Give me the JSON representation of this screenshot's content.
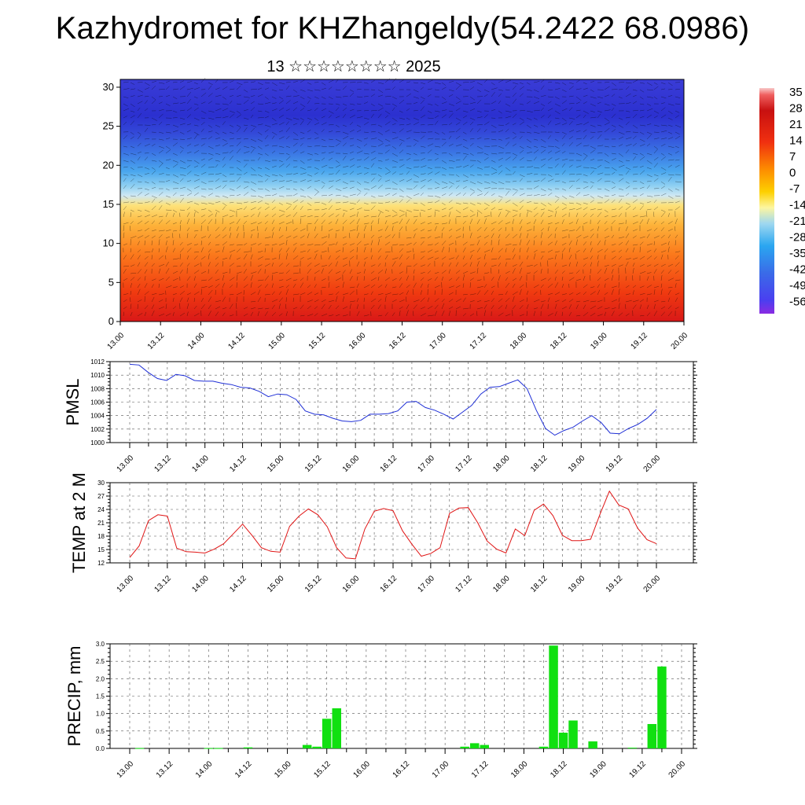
{
  "header": {
    "title": "Kazhydromet for KHZhangeldy(54.2422 68.0986)",
    "subtitle": "13 ☆☆☆☆☆☆☆☆ 2025"
  },
  "colors": {
    "pmsl_line": "#1f2fd6",
    "temp_line": "#e01414",
    "precip_bar": "#10e010",
    "frame": "#000000"
  },
  "chart_data": [
    {
      "type": "heatmap",
      "title": "",
      "xlabel": "",
      "ylabel": "",
      "x_tick_labels": [
        "13.00",
        "13.12",
        "14.00",
        "14.12",
        "15.00",
        "15.12",
        "16.00",
        "16.12",
        "17.00",
        "17.12",
        "18.00",
        "18.12",
        "19.00",
        "19.12",
        "20.00"
      ],
      "y_ticks": [
        0,
        5,
        10,
        15,
        20,
        25,
        30
      ],
      "ylim": [
        0,
        31
      ],
      "colorbar_labels": [
        "35",
        "28",
        "21",
        "14",
        "7",
        "0",
        "-7",
        "-14",
        "-21",
        "-28",
        "-35",
        "-42",
        "-49",
        "-56"
      ],
      "overlay": "wind vectors"
    },
    {
      "type": "line",
      "ylabel": "PMSL",
      "ylim": [
        1000,
        1012
      ],
      "y_ticks": [
        "1012",
        "1010",
        "1008",
        "1006",
        "1004",
        "1002",
        "1000"
      ],
      "x_tick_labels": [
        "13.00",
        "13.12",
        "14.00",
        "14.12",
        "15.00",
        "15.12",
        "16.00",
        "16.12",
        "17.00",
        "17.12",
        "18.00",
        "18.12",
        "19.00",
        "19.12",
        "20.00"
      ],
      "series": [
        {
          "values": [
            1011.6,
            1011.5,
            1010.4,
            1009.5,
            1009.2,
            1010.1,
            1009.9,
            1009.2,
            1009.1,
            1009.1,
            1008.8,
            1008.6,
            1008.2,
            1008.1,
            1007.6,
            1006.8,
            1007.2,
            1007.1,
            1006.4,
            1004.7,
            1004.2,
            1004.1,
            1003.6,
            1003.2,
            1003.1,
            1003.3,
            1004.2,
            1004.2,
            1004.3,
            1004.7,
            1006.0,
            1006.1,
            1005.2,
            1004.8,
            1004.2,
            1003.5,
            1004.5,
            1005.5,
            1007.2,
            1008.2,
            1008.3,
            1008.8,
            1009.3,
            1008.0,
            1004.8,
            1002.1,
            1001.1,
            1001.8,
            1002.3,
            1003.2,
            1004.0,
            1003.0,
            1001.4,
            1001.3,
            1002.1,
            1002.7,
            1003.6,
            1004.9
          ]
        }
      ]
    },
    {
      "type": "line",
      "ylabel": "TEMP at 2 M",
      "ylim": [
        12,
        30
      ],
      "y_ticks": [
        "30",
        "27",
        "24",
        "21",
        "18",
        "15",
        "12"
      ],
      "x_tick_labels": [
        "13.00",
        "13.12",
        "14.00",
        "14.12",
        "15.00",
        "15.12",
        "16.00",
        "16.12",
        "17.00",
        "17.12",
        "18.00",
        "18.12",
        "19.00",
        "19.12",
        "20.00"
      ],
      "series": [
        {
          "values": [
            13.2,
            15.8,
            21.5,
            22.8,
            22.5,
            15.3,
            14.5,
            14.4,
            14.2,
            15.1,
            16.3,
            18.5,
            20.7,
            18.2,
            15.4,
            14.6,
            14.4,
            20.2,
            22.5,
            24.1,
            22.8,
            20.1,
            15.4,
            13.1,
            12.9,
            19.6,
            23.6,
            24.2,
            23.7,
            19.2,
            16.2,
            13.5,
            14.1,
            15.4,
            23.1,
            24.3,
            24.4,
            21.0,
            16.9,
            15.1,
            14.2,
            19.6,
            18.1,
            23.8,
            25.2,
            22.6,
            18.2,
            17.0,
            17.0,
            17.3,
            22.9,
            28.1,
            25.0,
            24.1,
            19.8,
            17.2,
            16.3
          ]
        }
      ]
    },
    {
      "type": "bar",
      "ylabel": "PRECIP, mm",
      "ylim": [
        0,
        3.0
      ],
      "y_ticks": [
        "3.0",
        "2.5",
        "2.0",
        "1.5",
        "1.0",
        "0.5",
        "0.0"
      ],
      "x_tick_labels": [
        "13.00",
        "13.12",
        "14.00",
        "14.12",
        "15.00",
        "15.12",
        "16.00",
        "16.12",
        "17.00",
        "17.12",
        "18.00",
        "18.12",
        "19.00",
        "19.12",
        "20.00"
      ],
      "series": [
        {
          "values": [
            0,
            0.01,
            0,
            0,
            0,
            0,
            0,
            0,
            0.01,
            0.01,
            0,
            0,
            0.03,
            0,
            0,
            0,
            0,
            0,
            0.1,
            0.05,
            0.85,
            1.15,
            0,
            0,
            0,
            0,
            0,
            0,
            0,
            0,
            0,
            0,
            0,
            0,
            0.05,
            0.15,
            0.1,
            0,
            0,
            0,
            0,
            0,
            0.05,
            2.95,
            0.45,
            0.8,
            0,
            0.2,
            0,
            0,
            0,
            0.02,
            0,
            0.7,
            2.35,
            0,
            0
          ]
        }
      ]
    }
  ]
}
